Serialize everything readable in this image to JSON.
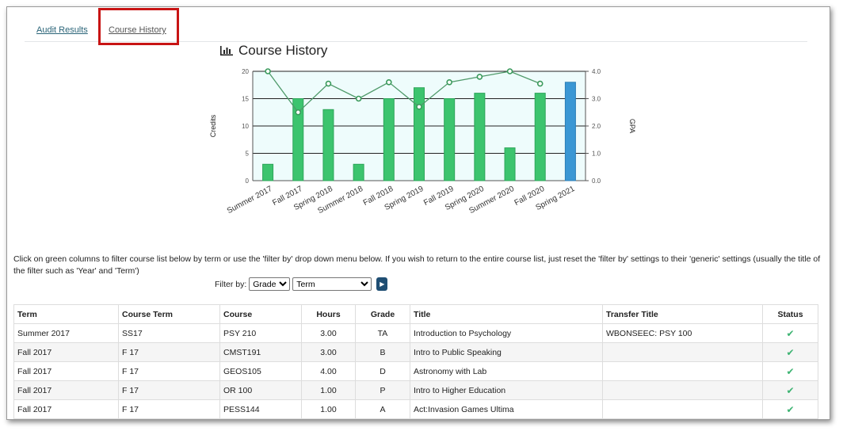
{
  "tabs": [
    {
      "label": "Audit Results"
    },
    {
      "label": "Course History"
    }
  ],
  "chart_title": "Course History",
  "chart_data": {
    "type": "bar",
    "title": "Course History",
    "categories": [
      "Summer 2017",
      "Fall 2017",
      "Spring 2018",
      "Summer 2018",
      "Fall 2018",
      "Spring 2019",
      "Fall 2019",
      "Spring 2020",
      "Summer 2020",
      "Fall 2020",
      "Spring 2021"
    ],
    "series": [
      {
        "name": "Credits",
        "type": "bar",
        "axis": "left",
        "values": [
          3,
          15,
          13,
          3,
          15,
          17,
          15,
          16,
          6,
          16,
          18
        ],
        "colors": [
          "#3cc46e",
          "#3cc46e",
          "#3cc46e",
          "#3cc46e",
          "#3cc46e",
          "#3cc46e",
          "#3cc46e",
          "#3cc46e",
          "#3cc46e",
          "#3cc46e",
          "#3a97d4"
        ]
      },
      {
        "name": "GPA",
        "type": "line",
        "axis": "right",
        "values": [
          4.0,
          2.5,
          3.55,
          3.0,
          3.6,
          2.7,
          3.6,
          3.8,
          4.0,
          3.55,
          null
        ],
        "color": "#4f9a6a"
      }
    ],
    "ylabel": "Credits",
    "y2label": "GPA",
    "ylim": [
      0,
      20
    ],
    "y2lim": [
      0,
      4
    ],
    "yticks": [
      "0",
      "5",
      "10",
      "15",
      "20"
    ],
    "y2ticks": [
      "0.0",
      "1.0",
      "2.0",
      "3.0",
      "4.0"
    ],
    "grid": true
  },
  "help_text": "Click on green columns to filter course list below by term or use the 'filter by' drop down menu below. If you wish to return to the entire course list, just reset the 'filter by' settings to their 'generic' settings (usually the title of the filter such as 'Year' and 'Term')",
  "filter": {
    "label": "Filter by:",
    "grade": "Grade",
    "term": "Term"
  },
  "table": {
    "headers": [
      "Term",
      "Course Term",
      "Course",
      "Hours",
      "Grade",
      "Title",
      "Transfer Title",
      "Status"
    ],
    "rows": [
      [
        "Summer 2017",
        "SS17",
        "PSY 210",
        "3.00",
        "TA",
        "Introduction to Psychology",
        "WBONSEEC: PSY 100",
        "✔"
      ],
      [
        "Fall 2017",
        "F 17",
        "CMST191",
        "3.00",
        "B",
        "Intro to Public Speaking",
        "",
        "✔"
      ],
      [
        "Fall 2017",
        "F 17",
        "GEOS105",
        "4.00",
        "D",
        "Astronomy with Lab",
        "",
        "✔"
      ],
      [
        "Fall 2017",
        "F 17",
        "OR 100",
        "1.00",
        "P",
        "Intro to Higher Education",
        "",
        "✔"
      ],
      [
        "Fall 2017",
        "F 17",
        "PESS144",
        "1.00",
        "A",
        "Act:Invasion Games Ultima",
        "",
        "✔"
      ]
    ]
  }
}
